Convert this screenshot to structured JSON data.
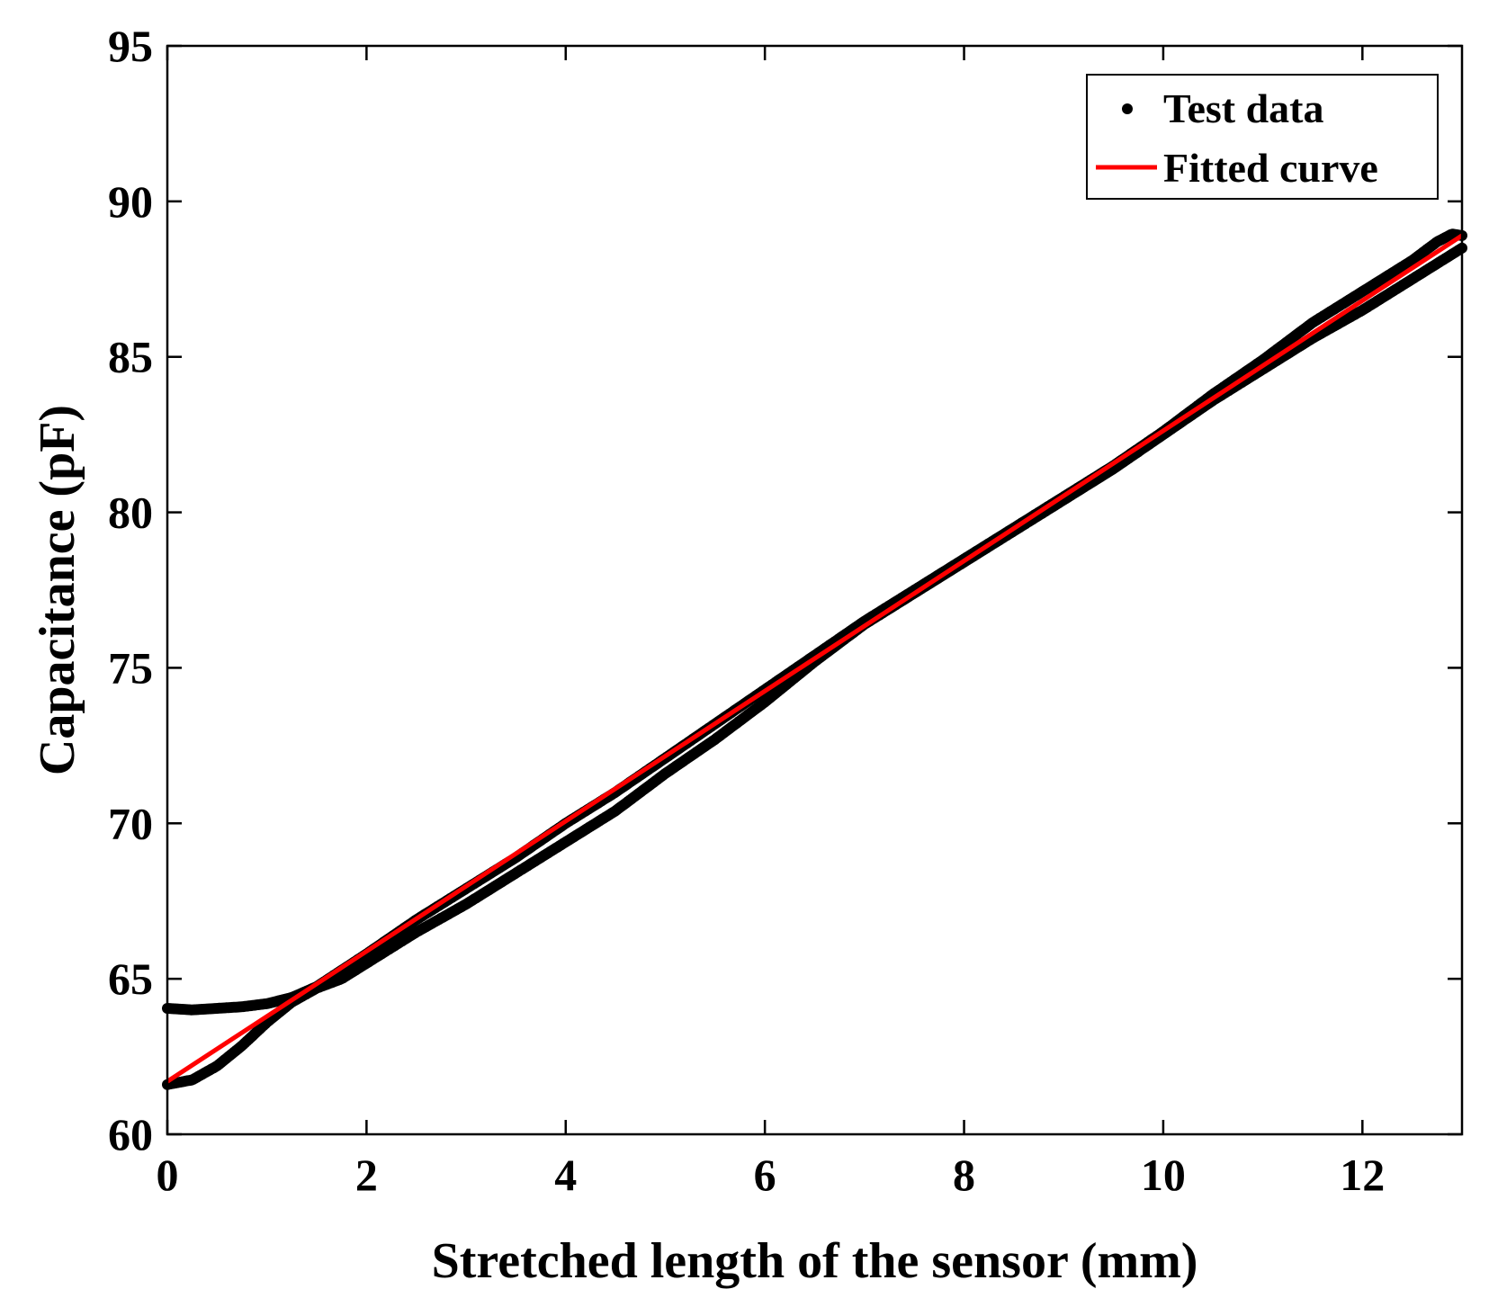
{
  "chart_data": {
    "type": "scatter",
    "title": "",
    "xlabel": "Stretched length of the sensor (mm)",
    "ylabel": "Capacitance (pF)",
    "xlim": [
      0,
      13
    ],
    "ylim": [
      60,
      95
    ],
    "xticks": [
      0,
      2,
      4,
      6,
      8,
      10,
      12
    ],
    "xtick_labels": [
      "0",
      "2",
      "4",
      "6",
      "8",
      "10",
      "12"
    ],
    "yticks": [
      60,
      65,
      70,
      75,
      80,
      85,
      90,
      95
    ],
    "ytick_labels": [
      "60",
      "65",
      "70",
      "75",
      "80",
      "85",
      "90",
      "95"
    ],
    "grid": false,
    "legend_position": "top-right",
    "series": [
      {
        "name": "Test data",
        "kind": "scatter",
        "color": "#000000",
        "marker": "dot",
        "branches": [
          {
            "x": [
              0,
              0.25,
              0.5,
              0.75,
              1.0,
              1.25,
              1.5,
              1.75,
              2.0,
              2.5,
              3.0,
              3.5,
              4.0,
              4.5,
              5.0,
              5.5,
              6.0,
              6.5,
              7.0,
              7.5,
              8.0,
              8.5,
              9.0,
              9.5,
              10.0,
              10.5,
              11.0,
              11.5,
              12.0,
              12.5,
              13.0
            ],
            "y": [
              61.6,
              61.75,
              62.2,
              62.85,
              63.6,
              64.25,
              64.7,
              65.0,
              65.5,
              66.5,
              67.4,
              68.4,
              69.4,
              70.4,
              71.6,
              72.7,
              73.9,
              75.2,
              76.4,
              77.4,
              78.4,
              79.4,
              80.4,
              81.4,
              82.5,
              83.6,
              84.6,
              85.6,
              86.5,
              87.5,
              88.5
            ]
          },
          {
            "x": [
              0,
              0.25,
              0.5,
              0.75,
              1.0,
              1.25,
              1.5,
              2.0,
              2.5,
              3.0,
              3.5,
              4.0,
              4.5,
              5.0,
              5.5,
              6.0,
              6.5,
              7.0,
              7.5,
              8.0,
              8.5,
              9.0,
              9.5,
              10.0,
              10.5,
              11.0,
              11.5,
              12.0,
              12.5,
              12.75,
              12.9,
              13.0
            ],
            "y": [
              64.05,
              64.0,
              64.05,
              64.1,
              64.2,
              64.4,
              64.75,
              65.8,
              66.9,
              67.9,
              68.9,
              70.0,
              71.0,
              72.1,
              73.2,
              74.3,
              75.4,
              76.5,
              77.5,
              78.5,
              79.5,
              80.5,
              81.5,
              82.6,
              83.8,
              84.9,
              86.1,
              87.1,
              88.1,
              88.7,
              88.95,
              88.9
            ]
          }
        ]
      },
      {
        "name": "Fitted curve",
        "kind": "line",
        "color": "#ff0000",
        "x": [
          0,
          13
        ],
        "y": [
          61.7,
          88.9
        ]
      }
    ]
  }
}
